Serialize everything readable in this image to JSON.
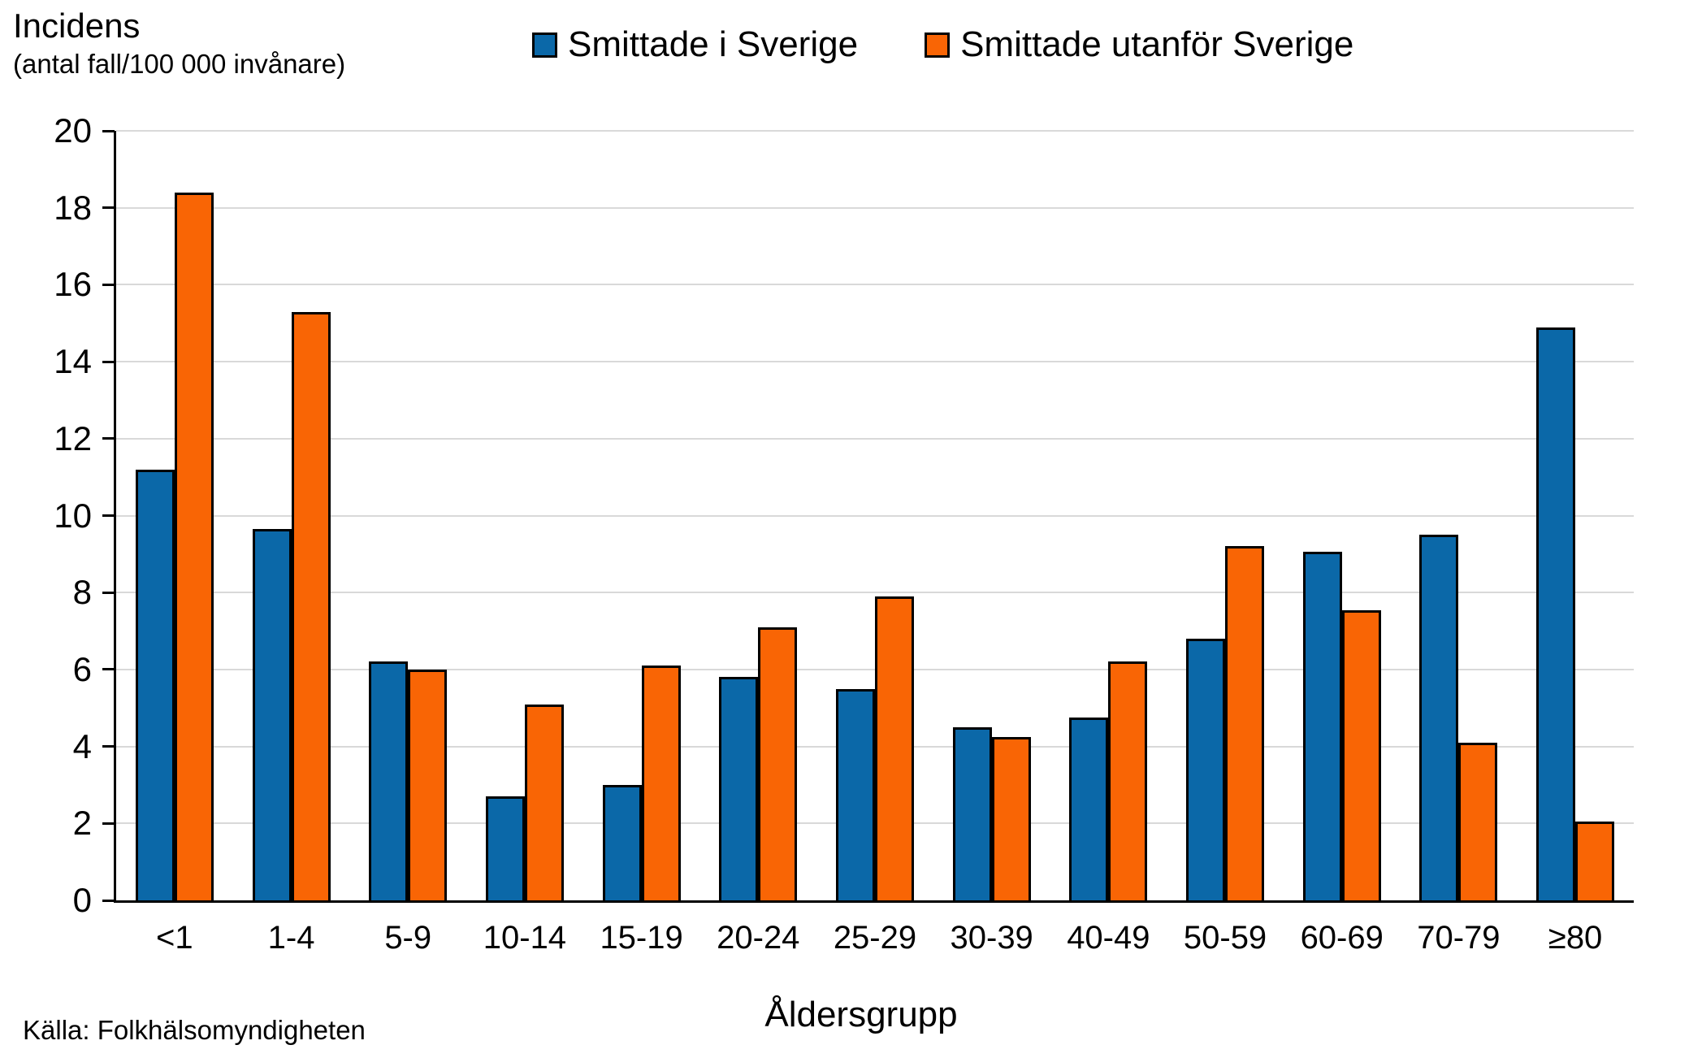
{
  "title": "Incidens",
  "subtitle": "(antal fall/100 000 invånare)",
  "source": "Källa: Folkhälsomyndigheten",
  "colors": {
    "series_sweden": "#0b68a8",
    "series_abroad": "#f96505",
    "bar_border": "#000000",
    "gridline": "#d9d9d9",
    "axis": "#000000"
  },
  "chart_data": {
    "type": "bar",
    "title": "Incidens (antal fall/100 000 invånare)",
    "xlabel": "Åldersgrupp",
    "ylabel": "Incidens (antal fall/100 000 invånare)",
    "ylim": [
      0,
      20
    ],
    "yticks": [
      0,
      2,
      4,
      6,
      8,
      10,
      12,
      14,
      16,
      18,
      20
    ],
    "grid": true,
    "legend_position": "top-center",
    "categories": [
      "<1",
      "1-4",
      "5-9",
      "10-14",
      "15-19",
      "20-24",
      "25-29",
      "30-39",
      "40-49",
      "50-59",
      "60-69",
      "70-79",
      "≥80"
    ],
    "series": [
      {
        "name": "Smittade i Sverige",
        "color": "#0b68a8",
        "values": [
          11.2,
          9.65,
          6.2,
          2.7,
          3.0,
          5.8,
          5.5,
          4.5,
          4.75,
          6.8,
          9.05,
          9.5,
          14.9
        ]
      },
      {
        "name": "Smittade utanför Sverige",
        "color": "#f96505",
        "values": [
          18.4,
          15.3,
          6.0,
          5.1,
          6.1,
          7.1,
          7.9,
          4.25,
          6.2,
          9.2,
          7.55,
          4.1,
          2.05
        ]
      }
    ]
  }
}
